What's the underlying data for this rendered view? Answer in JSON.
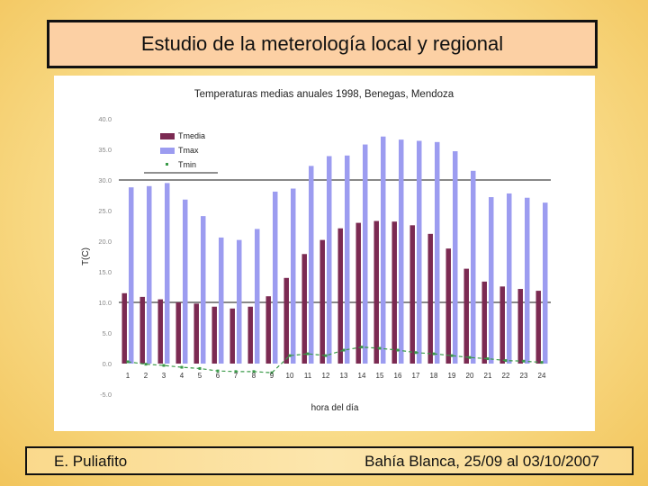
{
  "slide": {
    "title": "Estudio de la meterología local y regional",
    "author": "E. Puliafito",
    "event": "Bahía Blanca, 25/09 al 03/10/2007"
  },
  "colors": {
    "tmedia": "#7b2a52",
    "tmax": "#9c9cf0",
    "tmin": "#3a9a48"
  },
  "chart_data": {
    "type": "bar",
    "title": "Temperaturas medias anuales 1998, Benegas, Mendoza",
    "xlabel": "hora del día",
    "ylabel": "T(C)",
    "ylim": [
      -5,
      40
    ],
    "yticks": [
      "40.0",
      "35.0",
      "30.0",
      "25.0",
      "20.0",
      "15.0",
      "10.0",
      "5.0",
      "0.0",
      "-5.0"
    ],
    "categories": [
      "1",
      "2",
      "3",
      "4",
      "5",
      "6",
      "7",
      "8",
      "9",
      "10",
      "11",
      "12",
      "13",
      "14",
      "15",
      "16",
      "17",
      "18",
      "19",
      "20",
      "21",
      "22",
      "23",
      "24"
    ],
    "legend_position": "top-left",
    "reference_lines": [
      10,
      30
    ],
    "series": [
      {
        "name": "Tmedia",
        "kind": "bar",
        "values": [
          11.5,
          10.9,
          10.5,
          10.0,
          9.8,
          9.3,
          9.0,
          9.3,
          11.0,
          14.0,
          17.9,
          20.2,
          22.1,
          23.0,
          23.3,
          23.2,
          22.6,
          21.2,
          18.8,
          15.5,
          13.4,
          12.6,
          12.2,
          11.9
        ]
      },
      {
        "name": "Tmax",
        "kind": "bar",
        "values": [
          28.8,
          29.0,
          29.5,
          26.8,
          24.1,
          20.6,
          20.2,
          22.0,
          28.1,
          28.6,
          32.3,
          33.9,
          34.0,
          35.8,
          37.1,
          36.6,
          36.4,
          36.2,
          34.7,
          31.5,
          27.2,
          27.8,
          27.1,
          26.3
        ]
      },
      {
        "name": "Tmin",
        "kind": "line",
        "values": [
          0.3,
          -0.1,
          -0.3,
          -0.6,
          -0.8,
          -1.2,
          -1.3,
          -1.3,
          -1.5,
          1.3,
          1.6,
          1.3,
          2.2,
          2.7,
          2.5,
          2.2,
          1.8,
          1.6,
          1.3,
          1.0,
          0.8,
          0.5,
          0.4,
          0.2
        ]
      }
    ]
  }
}
